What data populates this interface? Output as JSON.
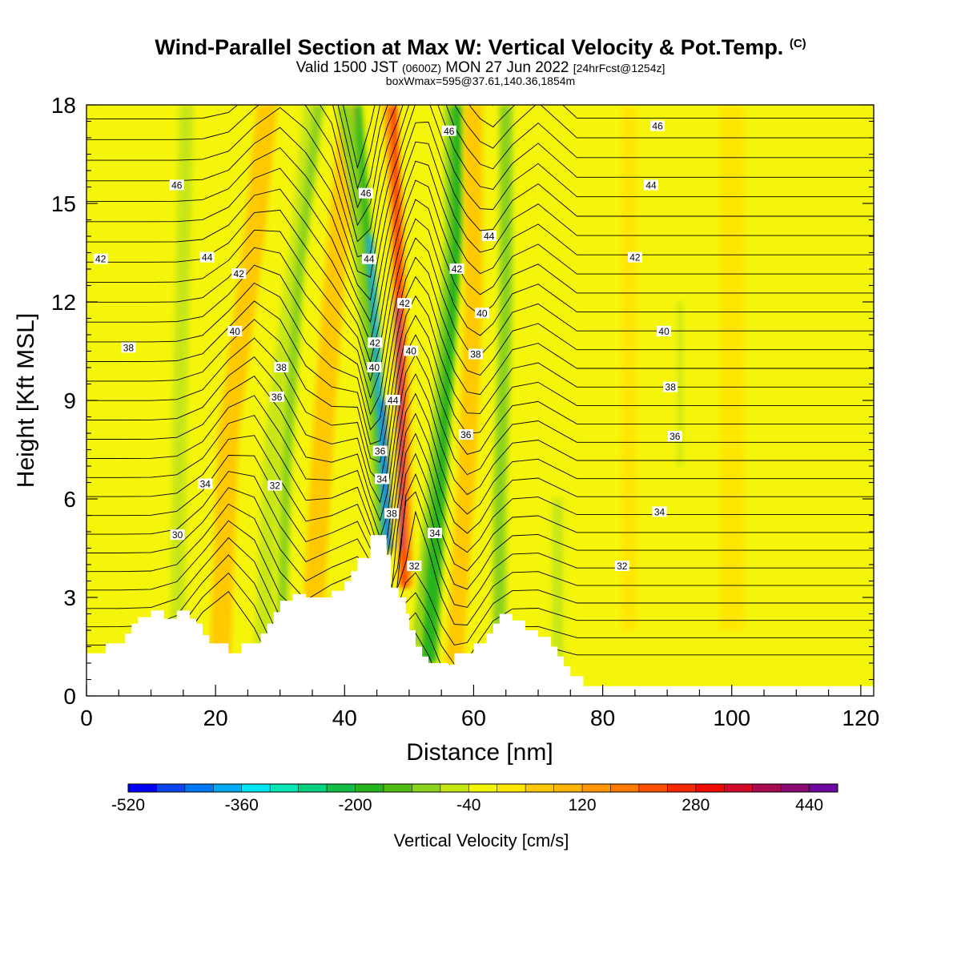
{
  "title": {
    "main": "Wind-Parallel Section at Max W: Vertical Velocity & Pot.Temp.",
    "copyright": "(C)",
    "valid_prefix": "Valid 1500 JST",
    "valid_utc": "(0600Z)",
    "valid_date": "MON 27 Jun 2022",
    "forecast": "[24hrFcst@1254z]",
    "box": "boxWmax=595@37.61,140.36,1854m"
  },
  "chart_data": {
    "type": "heatmap",
    "xlabel": "Distance [nm]",
    "ylabel": "Height [Kft MSL]",
    "xlim": [
      0,
      122
    ],
    "ylim": [
      0,
      18
    ],
    "x_ticks": [
      "0",
      "20",
      "40",
      "60",
      "80",
      "100",
      "120"
    ],
    "y_ticks": [
      "0",
      "3",
      "6",
      "9",
      "12",
      "15",
      "18"
    ],
    "colorbar": {
      "title": "Vertical Velocity [cm/s]",
      "range": [
        -520,
        480
      ],
      "tick_labels": [
        "-520",
        "-360",
        "-200",
        "-40",
        "120",
        "280",
        "440"
      ],
      "colors": [
        "#0000f5",
        "#0a45f0",
        "#0078f5",
        "#00aaf0",
        "#00e6f5",
        "#00e6b4",
        "#00d282",
        "#14be46",
        "#28b41e",
        "#50be14",
        "#8cd21e",
        "#c8e614",
        "#f5f50a",
        "#ffe600",
        "#ffc800",
        "#ffb400",
        "#ff9600",
        "#ff7800",
        "#ff5000",
        "#ff2800",
        "#f00a00",
        "#d20a28",
        "#aa0a50",
        "#8c0a78",
        "#6e0aa0"
      ]
    },
    "theta_contour_labels": [
      {
        "text": "46",
        "x": 14,
        "y": 15.55
      },
      {
        "text": "44",
        "x": 18.7,
        "y": 13.35
      },
      {
        "text": "42",
        "x": 2.2,
        "y": 13.3
      },
      {
        "text": "42",
        "x": 23.6,
        "y": 12.85
      },
      {
        "text": "40",
        "x": 23,
        "y": 11.1
      },
      {
        "text": "38",
        "x": 6.5,
        "y": 10.6
      },
      {
        "text": "38",
        "x": 30.2,
        "y": 10.0
      },
      {
        "text": "36",
        "x": 29.5,
        "y": 9.1
      },
      {
        "text": "34",
        "x": 18.4,
        "y": 6.45
      },
      {
        "text": "32",
        "x": 29.2,
        "y": 6.4
      },
      {
        "text": "30",
        "x": 14.1,
        "y": 4.9
      },
      {
        "text": "46",
        "x": 43.3,
        "y": 15.3
      },
      {
        "text": "44",
        "x": 43.8,
        "y": 13.3
      },
      {
        "text": "42",
        "x": 44.7,
        "y": 10.75
      },
      {
        "text": "40",
        "x": 44.6,
        "y": 10.0
      },
      {
        "text": "44",
        "x": 47.5,
        "y": 9.0
      },
      {
        "text": "36",
        "x": 45.5,
        "y": 7.45
      },
      {
        "text": "34",
        "x": 45.8,
        "y": 6.6
      },
      {
        "text": "38",
        "x": 47.3,
        "y": 5.55
      },
      {
        "text": "42",
        "x": 49.3,
        "y": 11.95
      },
      {
        "text": "40",
        "x": 50.3,
        "y": 10.5
      },
      {
        "text": "46",
        "x": 56.2,
        "y": 17.2
      },
      {
        "text": "44",
        "x": 62.4,
        "y": 14.0
      },
      {
        "text": "42",
        "x": 57.4,
        "y": 13.0
      },
      {
        "text": "40",
        "x": 61.3,
        "y": 11.65
      },
      {
        "text": "38",
        "x": 60.3,
        "y": 10.4
      },
      {
        "text": "36",
        "x": 58.8,
        "y": 7.95
      },
      {
        "text": "34",
        "x": 54.0,
        "y": 4.95
      },
      {
        "text": "32",
        "x": 50.8,
        "y": 3.95
      },
      {
        "text": "46",
        "x": 88.5,
        "y": 17.35
      },
      {
        "text": "44",
        "x": 87.5,
        "y": 15.55
      },
      {
        "text": "42",
        "x": 85.0,
        "y": 13.35
      },
      {
        "text": "40",
        "x": 89.5,
        "y": 11.1
      },
      {
        "text": "38",
        "x": 90.5,
        "y": 9.4
      },
      {
        "text": "36",
        "x": 91.2,
        "y": 7.9
      },
      {
        "text": "34",
        "x": 88.8,
        "y": 5.6
      },
      {
        "text": "32",
        "x": 83.0,
        "y": 3.95
      }
    ]
  }
}
